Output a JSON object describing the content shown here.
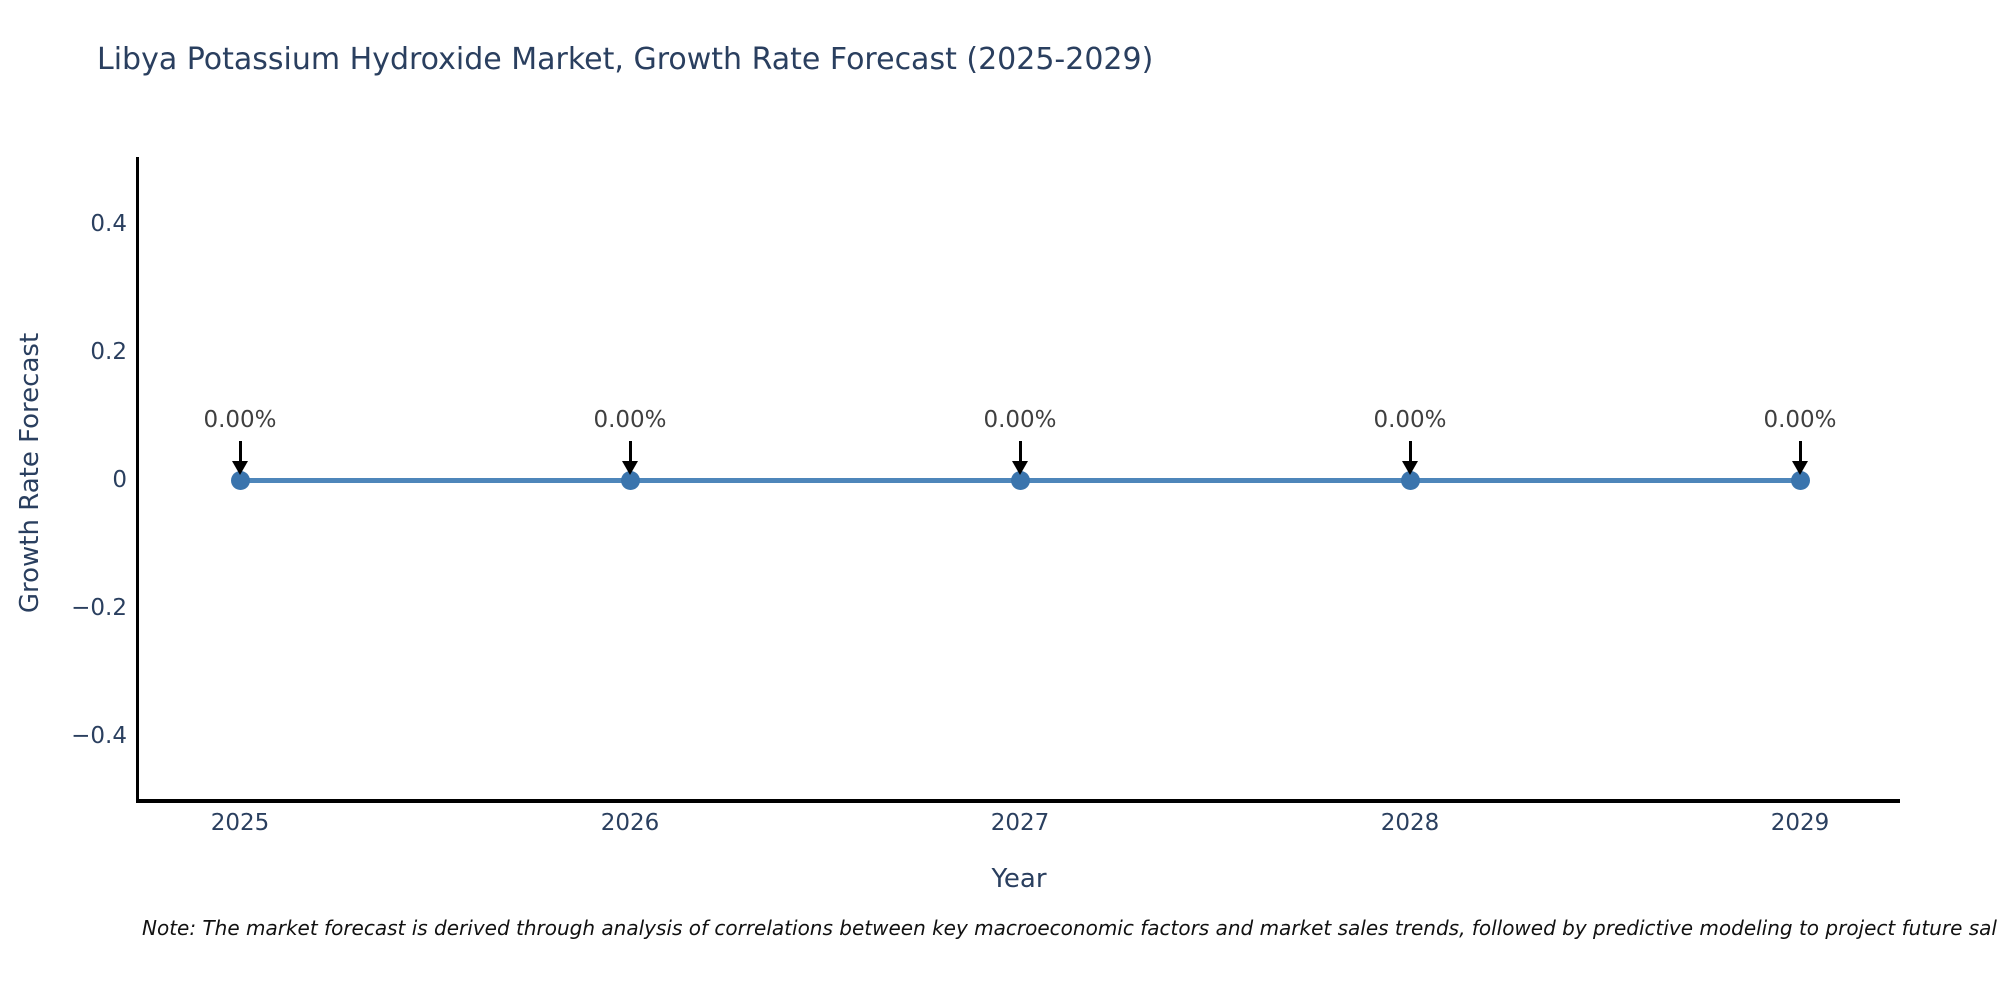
{
  "note": {
    "text": "Note: The market forecast is derived through analysis of correlations between key macroeconomic factors and market sales trends, followed by predictive modeling to project future sal"
  },
  "chart_data": {
    "type": "line",
    "title": "Libya Potassium Hydroxide Market, Growth Rate Forecast (2025-2029)",
    "xlabel": "Year",
    "ylabel": "Growth Rate Forecast",
    "categories": [
      "2025",
      "2026",
      "2027",
      "2028",
      "2029"
    ],
    "values": [
      0,
      0,
      0,
      0,
      0
    ],
    "point_labels": [
      "0.00%",
      "0.00%",
      "0.00%",
      "0.00%",
      "0.00%"
    ],
    "yticks": {
      "values": [
        0.4,
        0.2,
        0,
        -0.2,
        -0.4
      ],
      "labels": [
        "0.4",
        "0.2",
        "0",
        "−0.2",
        "−0.4"
      ]
    },
    "ylim": [
      -0.5,
      0.5
    ],
    "grid": false,
    "legend": "none",
    "colors": {
      "line": "#4e86ba",
      "marker": "#3a74ad",
      "arrow": "#000000",
      "axis": "#000000",
      "text": "#2a3f5f",
      "annotation_text": "#3f3f3f"
    }
  }
}
